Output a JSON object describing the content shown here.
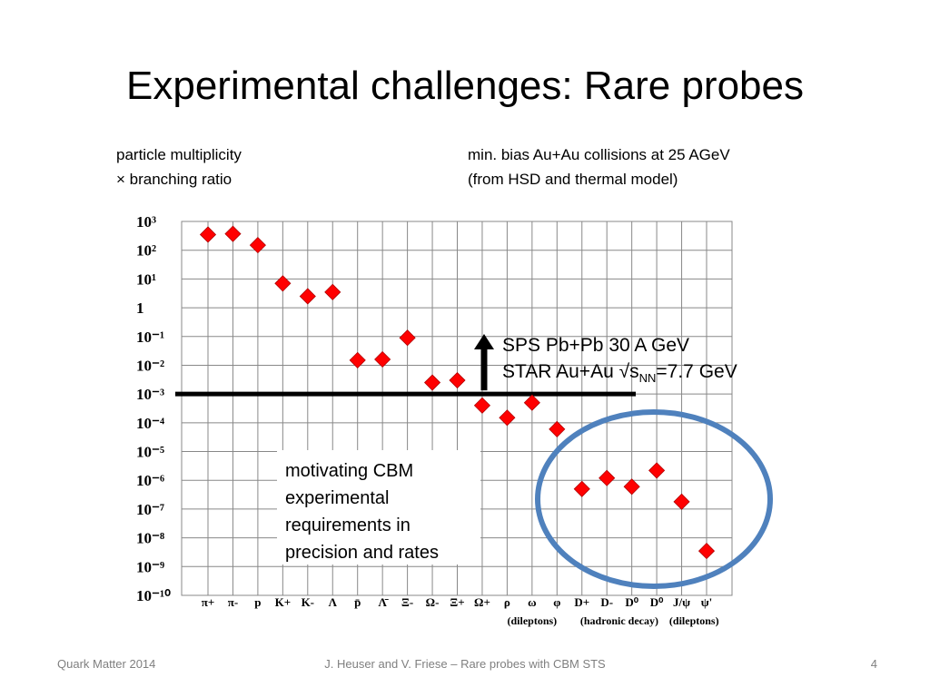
{
  "slide": {
    "title": "Experimental challenges: Rare probes",
    "note_left": [
      "particle multiplicity",
      "× branching ratio"
    ],
    "note_right": [
      "min. bias Au+Au collisions at 25 AGeV",
      "(from HSD and thermal model)"
    ],
    "callout_line1": "SPS Pb+Pb 30 A GeV",
    "callout_line2_prefix": "STAR Au+Au √s",
    "callout_line2_sub": "NN",
    "callout_line2_suffix": "=7.7 GeV",
    "box_text": [
      "motivating CBM",
      "experimental",
      "requirements in",
      "precision and rates"
    ],
    "footer_left": "Quark Matter 2014",
    "footer_center": "J. Heuser and V. Friese – Rare probes with CBM STS",
    "footer_right": "4"
  },
  "chart_data": {
    "type": "scatter",
    "log_y": true,
    "ylim": [
      1e-10,
      1000
    ],
    "yticks": [
      "10³",
      "10²",
      "10¹",
      "1",
      "10⁻¹",
      "10⁻²",
      "10⁻³",
      "10⁻⁴",
      "10⁻⁵",
      "10⁻⁶",
      "10⁻⁷",
      "10⁻⁸",
      "10⁻⁹",
      "10⁻¹⁰"
    ],
    "categories": [
      "π+",
      "π-",
      "p",
      "K+",
      "K-",
      "Λ",
      "p̄",
      "Λ̄",
      "Ξ-",
      "Ω-",
      "Ξ+",
      "Ω+",
      "ρ",
      "ω",
      "φ",
      "D+",
      "D-",
      "D⁰",
      "D⁰",
      "J/ψ",
      "ψ'"
    ],
    "values": [
      350,
      370,
      150,
      7,
      2.5,
      3.5,
      0.015,
      0.016,
      0.09,
      0.0025,
      0.003,
      0.0004,
      0.00015,
      0.0005,
      6e-05,
      5e-07,
      1.2e-06,
      6e-07,
      2.2e-06,
      1.8e-07,
      3.5e-09
    ],
    "group_labels": [
      {
        "text": "(dileptons)",
        "categories": [
          "ρ",
          "ω",
          "φ"
        ]
      },
      {
        "text": "(hadronic decay)",
        "categories": [
          "D+",
          "D-",
          "D⁰",
          "D⁰"
        ]
      },
      {
        "text": "(dileptons)",
        "categories": [
          "J/ψ",
          "ψ'"
        ]
      }
    ],
    "threshold_line": 0.001,
    "grid": true,
    "marker_color": "#ff0000",
    "highlight_color": "#4f81bd"
  }
}
